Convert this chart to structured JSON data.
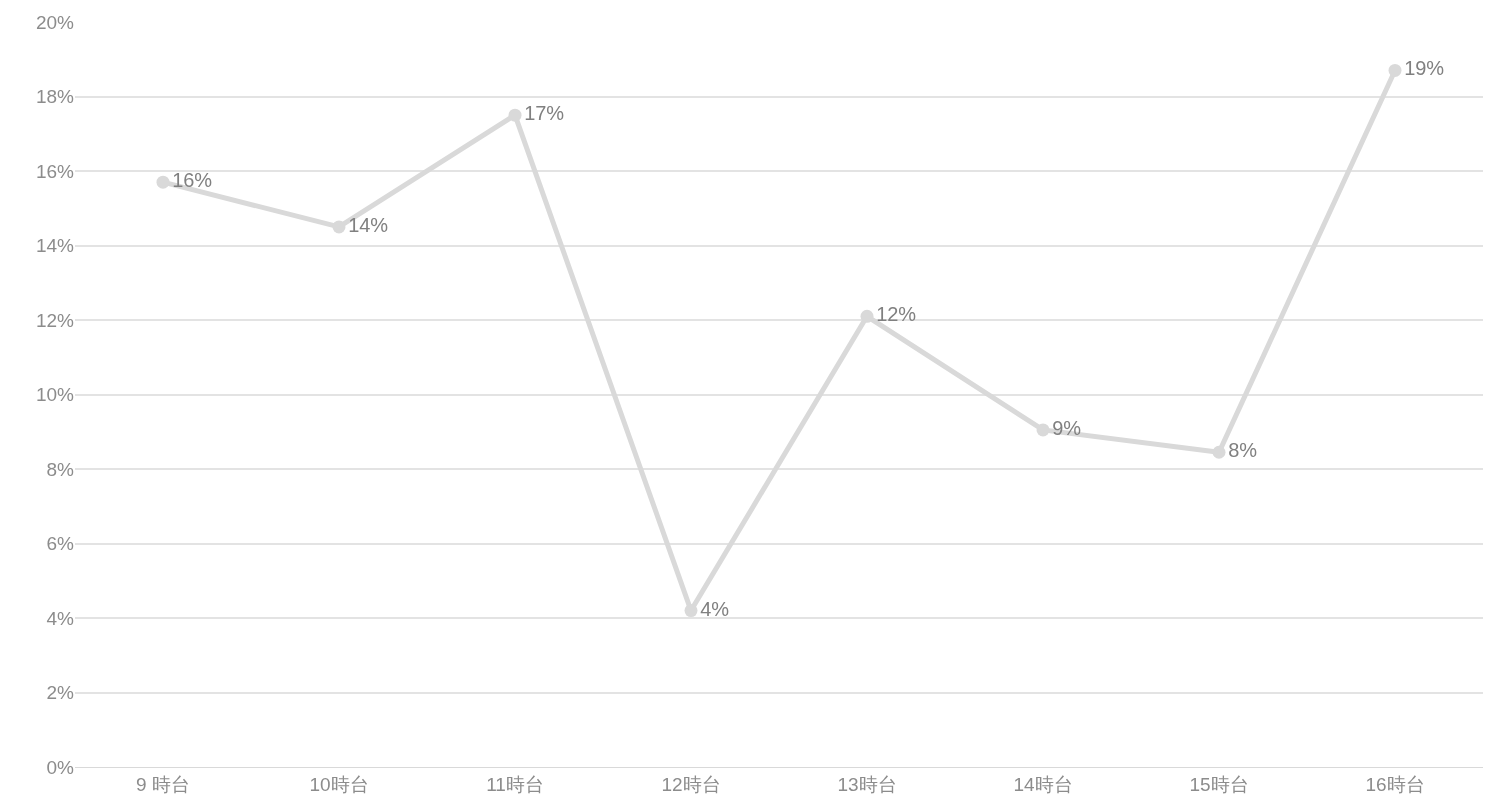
{
  "chart_data": {
    "type": "line",
    "categories": [
      "9 時台",
      "10時台",
      "11時台",
      "12時台",
      "13時台",
      "14時台",
      "15時台",
      "16時台"
    ],
    "series": [
      {
        "color": "#d9d9d9",
        "values": [
          15.7,
          14.5,
          17.5,
          4.2,
          12.1,
          9.05,
          8.45,
          18.7
        ]
      }
    ],
    "value_labels": [
      "16%",
      "14%",
      "17%",
      "4%",
      "12%",
      "9%",
      "8%",
      "19%"
    ],
    "ylim": [
      0,
      20
    ],
    "yticks": [
      {
        "value": 0,
        "label": "0%"
      },
      {
        "value": 2,
        "label": "2%"
      },
      {
        "value": 4,
        "label": "4%"
      },
      {
        "value": 6,
        "label": "6%"
      },
      {
        "value": 8,
        "label": "8%"
      },
      {
        "value": 10,
        "label": "10%"
      },
      {
        "value": 12,
        "label": "12%"
      },
      {
        "value": 14,
        "label": "14%"
      },
      {
        "value": 16,
        "label": "16%"
      },
      {
        "value": 18,
        "label": "18%"
      },
      {
        "value": 20,
        "label": "20%"
      }
    ],
    "grid": "y",
    "marker": "circle",
    "line_style": "solid",
    "legend": false
  }
}
